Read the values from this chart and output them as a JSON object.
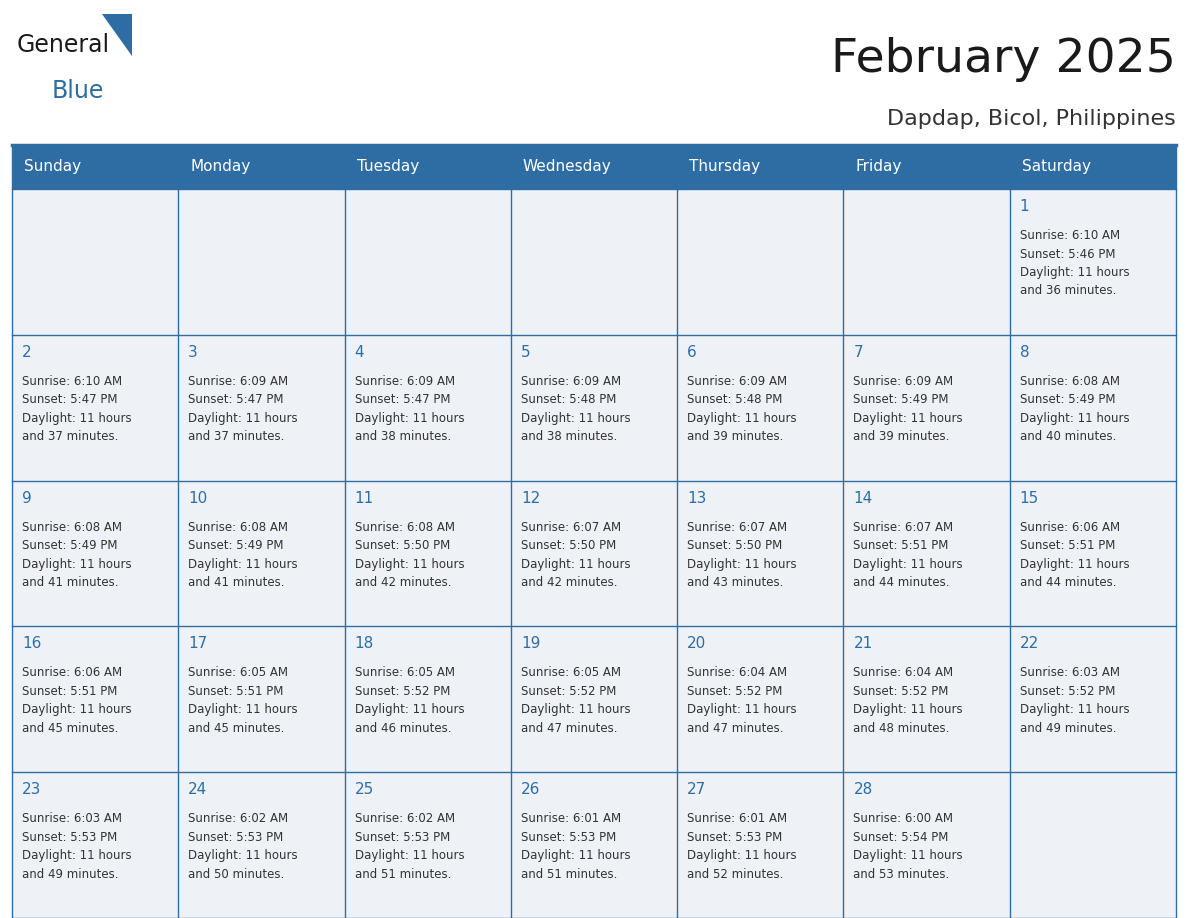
{
  "title": "February 2025",
  "subtitle": "Dapdap, Bicol, Philippines",
  "header_color": "#2e6da4",
  "header_text_color": "#ffffff",
  "cell_bg_color": "#eef2f7",
  "border_color": "#2e6da4",
  "text_color": "#333333",
  "day_number_color": "#2e6da4",
  "weekdays": [
    "Sunday",
    "Monday",
    "Tuesday",
    "Wednesday",
    "Thursday",
    "Friday",
    "Saturday"
  ],
  "days_data": [
    {
      "day": 1,
      "col": 6,
      "row": 0,
      "sunrise": "6:10 AM",
      "sunset": "5:46 PM",
      "daylight_h": "11 hours",
      "daylight_m": "and 36 minutes."
    },
    {
      "day": 2,
      "col": 0,
      "row": 1,
      "sunrise": "6:10 AM",
      "sunset": "5:47 PM",
      "daylight_h": "11 hours",
      "daylight_m": "and 37 minutes."
    },
    {
      "day": 3,
      "col": 1,
      "row": 1,
      "sunrise": "6:09 AM",
      "sunset": "5:47 PM",
      "daylight_h": "11 hours",
      "daylight_m": "and 37 minutes."
    },
    {
      "day": 4,
      "col": 2,
      "row": 1,
      "sunrise": "6:09 AM",
      "sunset": "5:47 PM",
      "daylight_h": "11 hours",
      "daylight_m": "and 38 minutes."
    },
    {
      "day": 5,
      "col": 3,
      "row": 1,
      "sunrise": "6:09 AM",
      "sunset": "5:48 PM",
      "daylight_h": "11 hours",
      "daylight_m": "and 38 minutes."
    },
    {
      "day": 6,
      "col": 4,
      "row": 1,
      "sunrise": "6:09 AM",
      "sunset": "5:48 PM",
      "daylight_h": "11 hours",
      "daylight_m": "and 39 minutes."
    },
    {
      "day": 7,
      "col": 5,
      "row": 1,
      "sunrise": "6:09 AM",
      "sunset": "5:49 PM",
      "daylight_h": "11 hours",
      "daylight_m": "and 39 minutes."
    },
    {
      "day": 8,
      "col": 6,
      "row": 1,
      "sunrise": "6:08 AM",
      "sunset": "5:49 PM",
      "daylight_h": "11 hours",
      "daylight_m": "and 40 minutes."
    },
    {
      "day": 9,
      "col": 0,
      "row": 2,
      "sunrise": "6:08 AM",
      "sunset": "5:49 PM",
      "daylight_h": "11 hours",
      "daylight_m": "and 41 minutes."
    },
    {
      "day": 10,
      "col": 1,
      "row": 2,
      "sunrise": "6:08 AM",
      "sunset": "5:49 PM",
      "daylight_h": "11 hours",
      "daylight_m": "and 41 minutes."
    },
    {
      "day": 11,
      "col": 2,
      "row": 2,
      "sunrise": "6:08 AM",
      "sunset": "5:50 PM",
      "daylight_h": "11 hours",
      "daylight_m": "and 42 minutes."
    },
    {
      "day": 12,
      "col": 3,
      "row": 2,
      "sunrise": "6:07 AM",
      "sunset": "5:50 PM",
      "daylight_h": "11 hours",
      "daylight_m": "and 42 minutes."
    },
    {
      "day": 13,
      "col": 4,
      "row": 2,
      "sunrise": "6:07 AM",
      "sunset": "5:50 PM",
      "daylight_h": "11 hours",
      "daylight_m": "and 43 minutes."
    },
    {
      "day": 14,
      "col": 5,
      "row": 2,
      "sunrise": "6:07 AM",
      "sunset": "5:51 PM",
      "daylight_h": "11 hours",
      "daylight_m": "and 44 minutes."
    },
    {
      "day": 15,
      "col": 6,
      "row": 2,
      "sunrise": "6:06 AM",
      "sunset": "5:51 PM",
      "daylight_h": "11 hours",
      "daylight_m": "and 44 minutes."
    },
    {
      "day": 16,
      "col": 0,
      "row": 3,
      "sunrise": "6:06 AM",
      "sunset": "5:51 PM",
      "daylight_h": "11 hours",
      "daylight_m": "and 45 minutes."
    },
    {
      "day": 17,
      "col": 1,
      "row": 3,
      "sunrise": "6:05 AM",
      "sunset": "5:51 PM",
      "daylight_h": "11 hours",
      "daylight_m": "and 45 minutes."
    },
    {
      "day": 18,
      "col": 2,
      "row": 3,
      "sunrise": "6:05 AM",
      "sunset": "5:52 PM",
      "daylight_h": "11 hours",
      "daylight_m": "and 46 minutes."
    },
    {
      "day": 19,
      "col": 3,
      "row": 3,
      "sunrise": "6:05 AM",
      "sunset": "5:52 PM",
      "daylight_h": "11 hours",
      "daylight_m": "and 47 minutes."
    },
    {
      "day": 20,
      "col": 4,
      "row": 3,
      "sunrise": "6:04 AM",
      "sunset": "5:52 PM",
      "daylight_h": "11 hours",
      "daylight_m": "and 47 minutes."
    },
    {
      "day": 21,
      "col": 5,
      "row": 3,
      "sunrise": "6:04 AM",
      "sunset": "5:52 PM",
      "daylight_h": "11 hours",
      "daylight_m": "and 48 minutes."
    },
    {
      "day": 22,
      "col": 6,
      "row": 3,
      "sunrise": "6:03 AM",
      "sunset": "5:52 PM",
      "daylight_h": "11 hours",
      "daylight_m": "and 49 minutes."
    },
    {
      "day": 23,
      "col": 0,
      "row": 4,
      "sunrise": "6:03 AM",
      "sunset": "5:53 PM",
      "daylight_h": "11 hours",
      "daylight_m": "and 49 minutes."
    },
    {
      "day": 24,
      "col": 1,
      "row": 4,
      "sunrise": "6:02 AM",
      "sunset": "5:53 PM",
      "daylight_h": "11 hours",
      "daylight_m": "and 50 minutes."
    },
    {
      "day": 25,
      "col": 2,
      "row": 4,
      "sunrise": "6:02 AM",
      "sunset": "5:53 PM",
      "daylight_h": "11 hours",
      "daylight_m": "and 51 minutes."
    },
    {
      "day": 26,
      "col": 3,
      "row": 4,
      "sunrise": "6:01 AM",
      "sunset": "5:53 PM",
      "daylight_h": "11 hours",
      "daylight_m": "and 51 minutes."
    },
    {
      "day": 27,
      "col": 4,
      "row": 4,
      "sunrise": "6:01 AM",
      "sunset": "5:53 PM",
      "daylight_h": "11 hours",
      "daylight_m": "and 52 minutes."
    },
    {
      "day": 28,
      "col": 5,
      "row": 4,
      "sunrise": "6:00 AM",
      "sunset": "5:54 PM",
      "daylight_h": "11 hours",
      "daylight_m": "and 53 minutes."
    }
  ],
  "num_rows": 5,
  "num_cols": 7
}
